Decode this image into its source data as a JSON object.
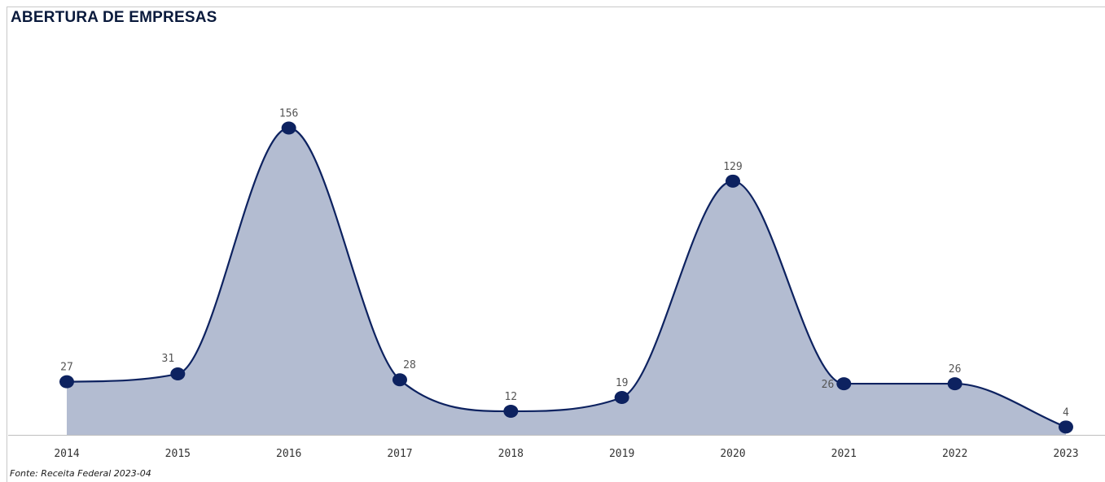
{
  "title": "ABERTURA DE EMPRESAS",
  "source": "Fonte: Receita Federal 2023-04",
  "chart_data": {
    "type": "area",
    "title": "ABERTURA DE EMPRESAS",
    "xlabel": "",
    "ylabel": "",
    "categories": [
      "2014",
      "2015",
      "2016",
      "2017",
      "2018",
      "2019",
      "2020",
      "2021",
      "2022",
      "2023"
    ],
    "values": [
      27,
      31,
      156,
      28,
      12,
      19,
      129,
      26,
      26,
      4
    ],
    "ylim": [
      0,
      170
    ],
    "grid": false,
    "legend": "none",
    "colors": {
      "line": "#0d2260",
      "fill": "#b3bcd1",
      "marker": "#0d2260"
    }
  }
}
